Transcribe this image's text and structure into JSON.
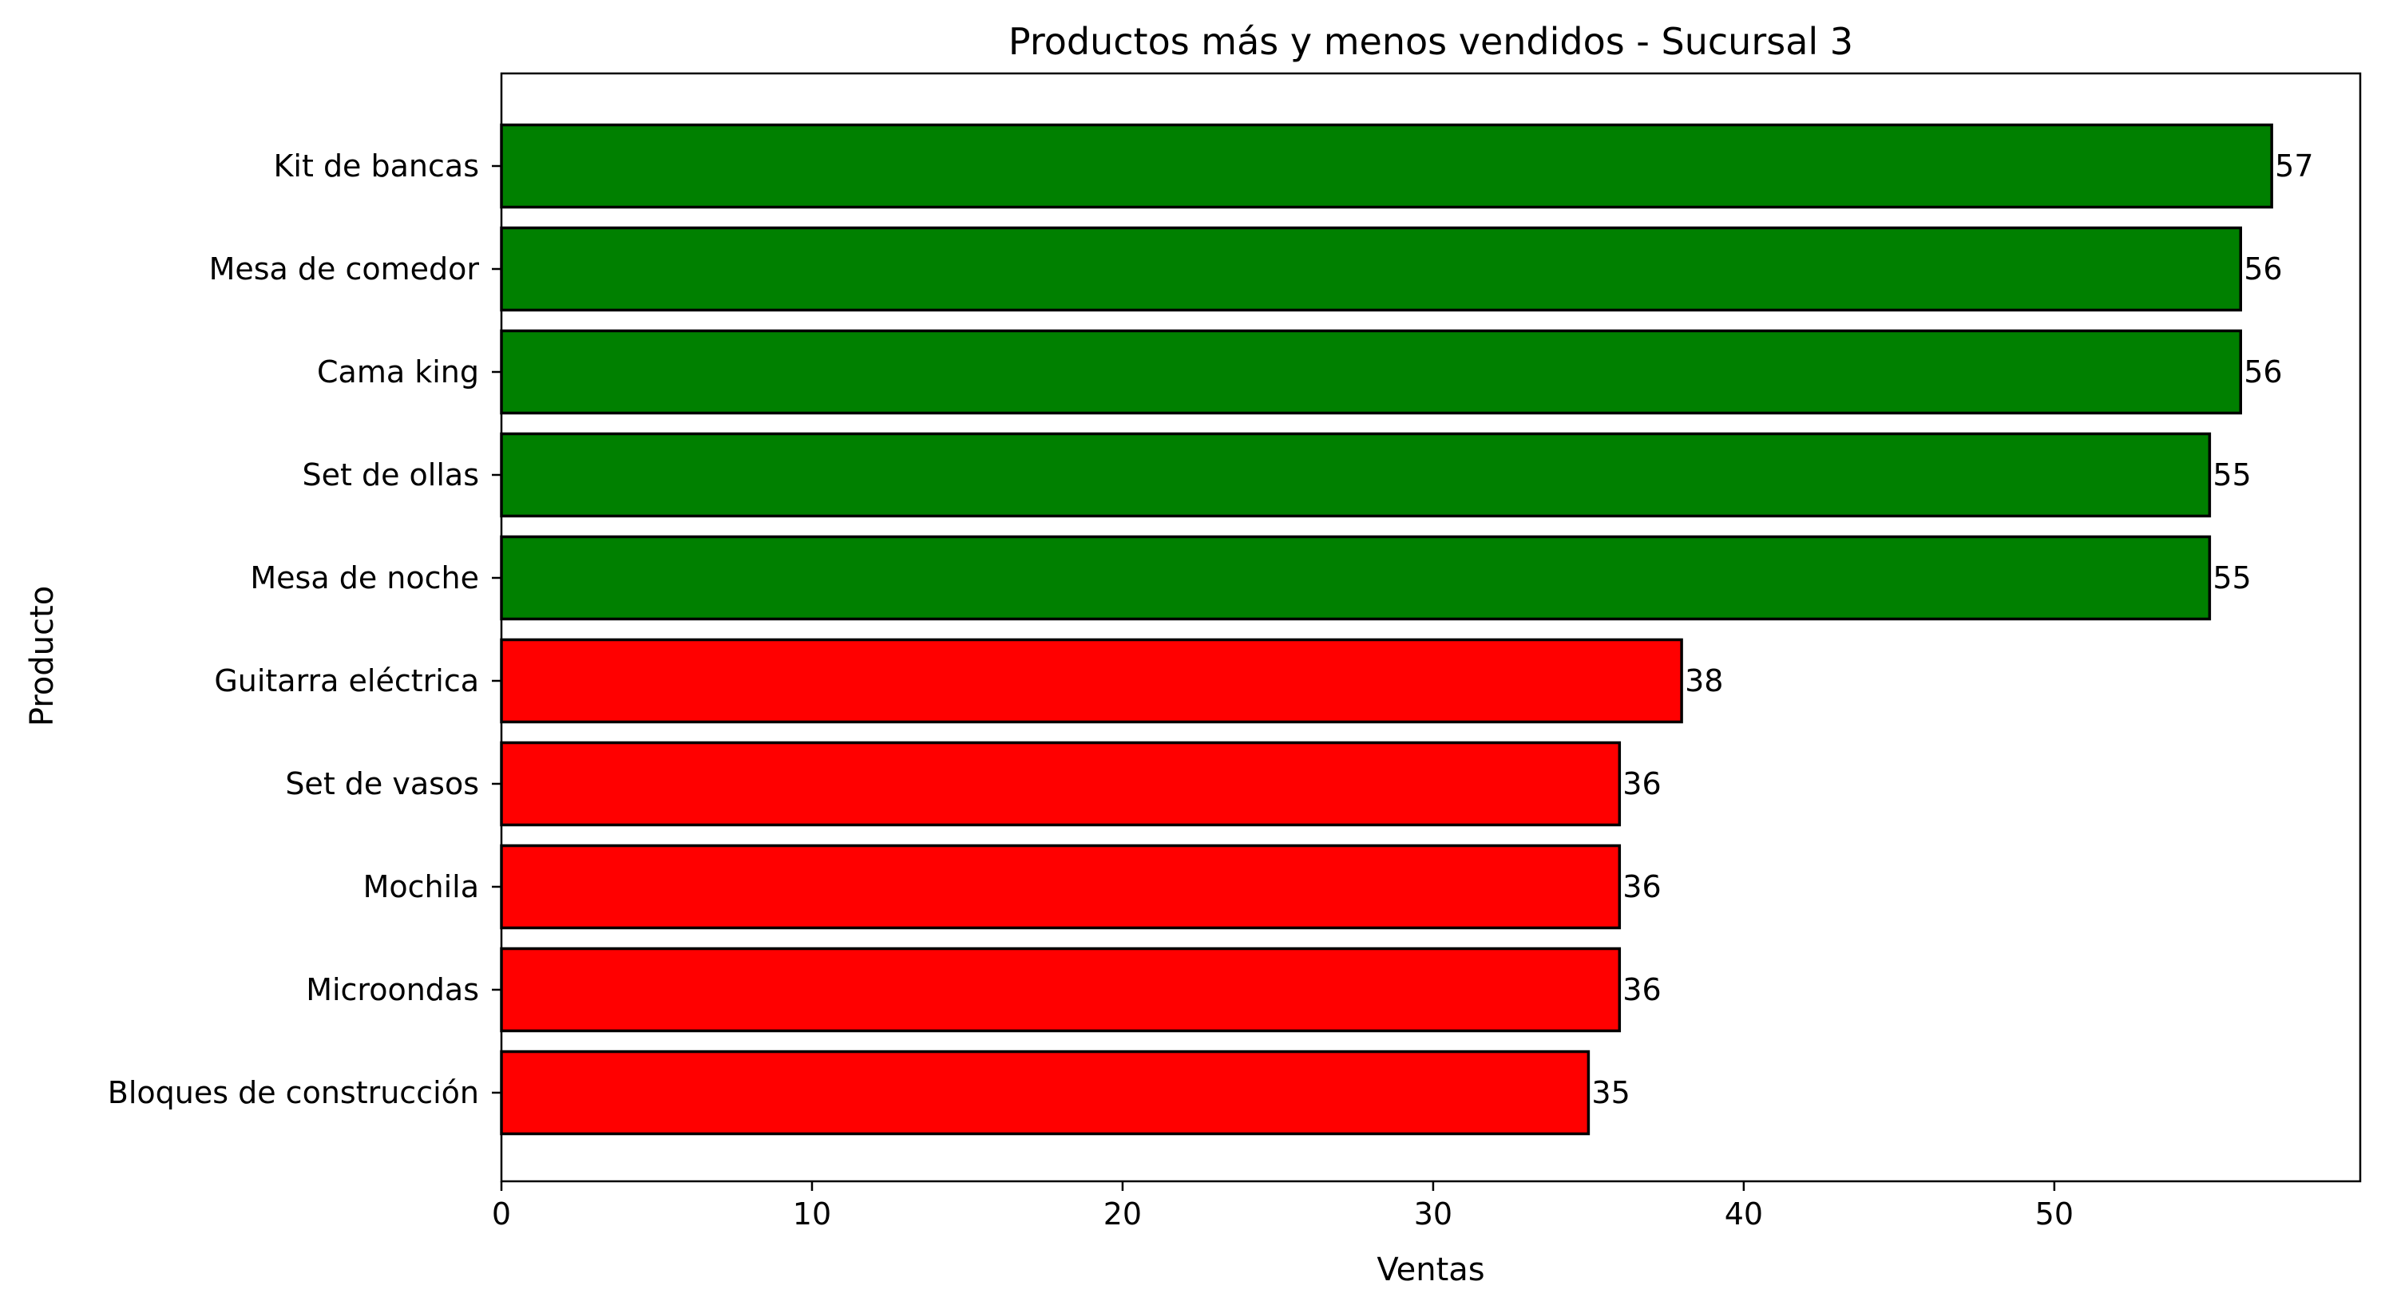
{
  "chart_data": {
    "type": "bar",
    "orientation": "horizontal",
    "title": "Productos más y menos vendidos - Sucursal 3",
    "xlabel": "Ventas",
    "ylabel": "Producto",
    "categories": [
      "Kit de bancas",
      "Mesa de comedor",
      "Cama king",
      "Set de ollas",
      "Mesa de noche",
      "Guitarra eléctrica",
      "Set de vasos",
      "Mochila",
      "Microondas",
      "Bloques de construcción"
    ],
    "values": [
      57,
      56,
      56,
      55,
      55,
      38,
      36,
      36,
      36,
      35
    ],
    "bar_colors": [
      "#008000",
      "#008000",
      "#008000",
      "#008000",
      "#008000",
      "#ff0000",
      "#ff0000",
      "#ff0000",
      "#ff0000",
      "#ff0000"
    ],
    "xlim": [
      0,
      59.85
    ],
    "xticks": [
      0,
      10,
      20,
      30,
      40,
      50
    ],
    "grid": false,
    "legend": "none"
  }
}
